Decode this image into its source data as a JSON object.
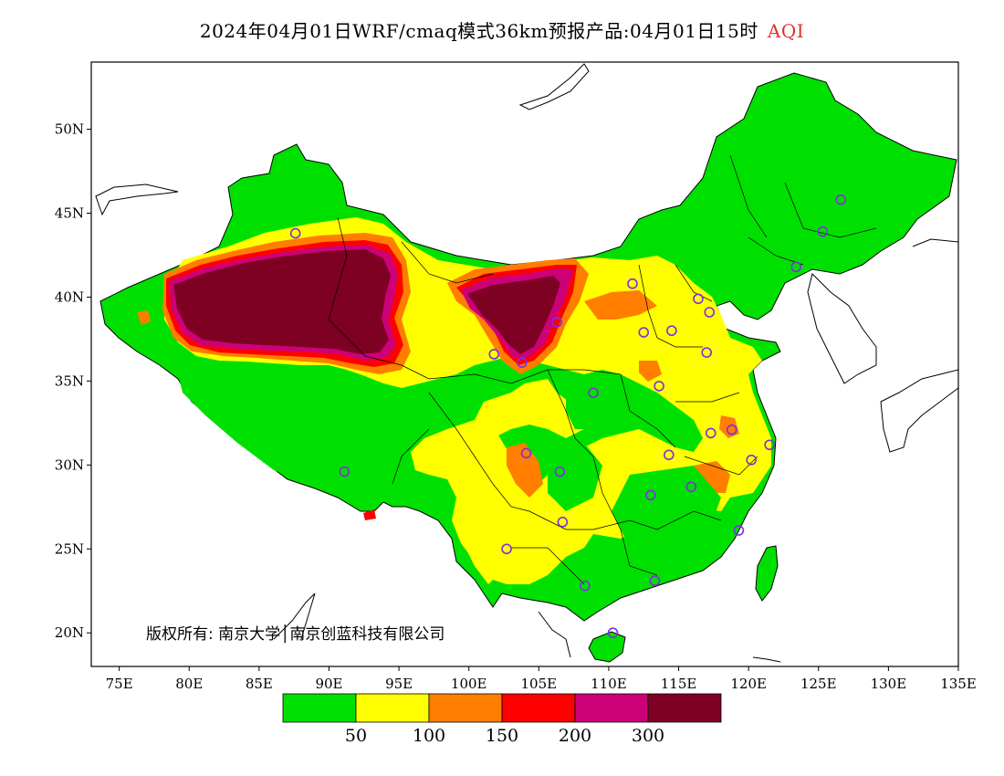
{
  "title": {
    "main": "2024年04月01日WRF/cmaq模式36km预报产品:04月01日15时",
    "variable": "AQI"
  },
  "credit": "版权所有: 南京大学│南京创蓝科技有限公司",
  "axes": {
    "lat_labels": [
      "50N",
      "45N",
      "40N",
      "35N",
      "30N",
      "25N",
      "20N"
    ],
    "lon_labels": [
      "75E",
      "80E",
      "85E",
      "90E",
      "95E",
      "100E",
      "105E",
      "110E",
      "115E",
      "120E",
      "125E",
      "130E",
      "135E"
    ],
    "lat_range": [
      18,
      54
    ],
    "lon_range": [
      73,
      135
    ]
  },
  "colorbar": {
    "colors": [
      "#00e000",
      "#ffff00",
      "#ff7e00",
      "#ff0000",
      "#cc0077",
      "#7e0023"
    ],
    "labels": [
      "50",
      "100",
      "150",
      "200",
      "300"
    ]
  },
  "colors": {
    "background": "#ffffff",
    "station_marker": "#7f2fdf",
    "border": "#000000"
  },
  "stations": [
    {
      "lon": 87.6,
      "lat": 43.8
    },
    {
      "lon": 91.1,
      "lat": 29.6
    },
    {
      "lon": 101.8,
      "lat": 36.6
    },
    {
      "lon": 103.8,
      "lat": 36.1
    },
    {
      "lon": 106.3,
      "lat": 38.5
    },
    {
      "lon": 111.7,
      "lat": 40.8
    },
    {
      "lon": 112.5,
      "lat": 37.9
    },
    {
      "lon": 114.5,
      "lat": 38.0
    },
    {
      "lon": 116.4,
      "lat": 39.9
    },
    {
      "lon": 117.2,
      "lat": 39.1
    },
    {
      "lon": 117.0,
      "lat": 36.7
    },
    {
      "lon": 113.6,
      "lat": 34.7
    },
    {
      "lon": 108.9,
      "lat": 34.3
    },
    {
      "lon": 104.1,
      "lat": 30.7
    },
    {
      "lon": 106.5,
      "lat": 29.6
    },
    {
      "lon": 114.3,
      "lat": 30.6
    },
    {
      "lon": 117.3,
      "lat": 31.9
    },
    {
      "lon": 118.8,
      "lat": 32.1
    },
    {
      "lon": 121.5,
      "lat": 31.2
    },
    {
      "lon": 120.2,
      "lat": 30.3
    },
    {
      "lon": 115.9,
      "lat": 28.7
    },
    {
      "lon": 113.0,
      "lat": 28.2
    },
    {
      "lon": 106.7,
      "lat": 26.6
    },
    {
      "lon": 102.7,
      "lat": 25.0
    },
    {
      "lon": 108.3,
      "lat": 22.8
    },
    {
      "lon": 113.3,
      "lat": 23.1
    },
    {
      "lon": 119.3,
      "lat": 26.1
    },
    {
      "lon": 110.3,
      "lat": 20.0
    },
    {
      "lon": 123.4,
      "lat": 41.8
    },
    {
      "lon": 125.3,
      "lat": 43.9
    },
    {
      "lon": 126.6,
      "lat": 45.8
    }
  ]
}
